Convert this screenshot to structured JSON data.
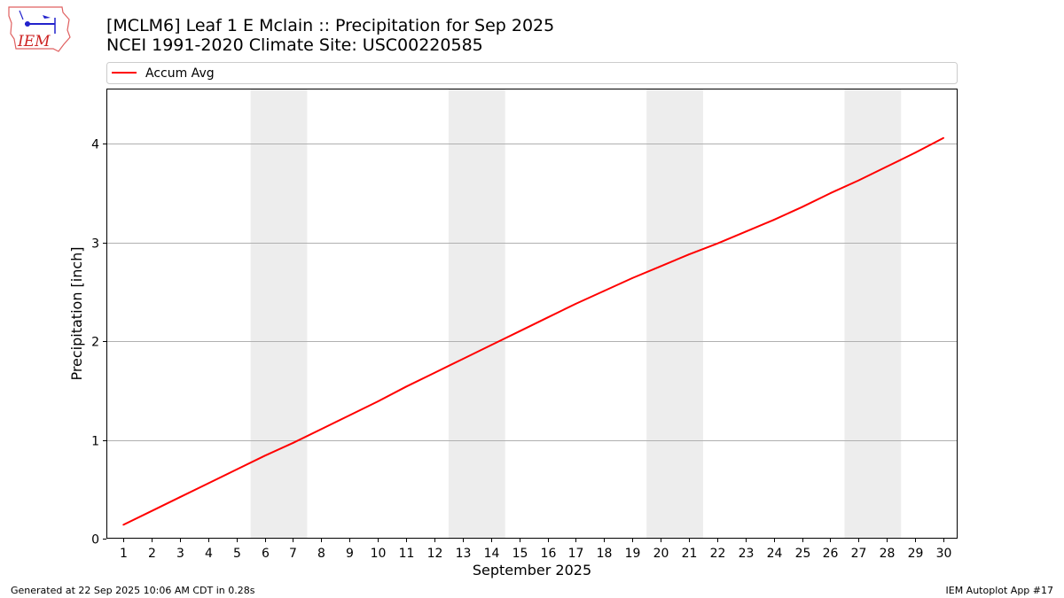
{
  "header": {
    "logo_text": "IEM",
    "title_line1": "[MCLM6] Leaf 1 E Mclain :: Precipitation for Sep 2025",
    "title_line2": "NCEI 1991-2020 Climate Site: USC00220585"
  },
  "footer": {
    "left": "Generated at 22 Sep 2025 10:06 AM CDT in 0.28s",
    "right": "IEM Autoplot App #17"
  },
  "chart_data": {
    "type": "line",
    "title": "[MCLM6] Leaf 1 E Mclain :: Precipitation for Sep 2025",
    "subtitle": "NCEI 1991-2020 Climate Site: USC00220585",
    "xlabel": "September 2025",
    "ylabel": "Precipitation [inch]",
    "xlim": [
      0.4,
      30.5
    ],
    "ylim": [
      0,
      4.56
    ],
    "yticks": [
      0,
      1,
      2,
      3,
      4
    ],
    "x": [
      1,
      2,
      3,
      4,
      5,
      6,
      7,
      8,
      9,
      10,
      11,
      12,
      13,
      14,
      15,
      16,
      17,
      18,
      19,
      20,
      21,
      22,
      23,
      24,
      25,
      26,
      27,
      28,
      29,
      30
    ],
    "series": [
      {
        "name": "Accum Avg",
        "color": "#ff0000",
        "values": [
          0.14,
          0.28,
          0.42,
          0.56,
          0.7,
          0.84,
          0.97,
          1.11,
          1.25,
          1.39,
          1.54,
          1.68,
          1.82,
          1.96,
          2.1,
          2.24,
          2.38,
          2.51,
          2.64,
          2.76,
          2.88,
          2.99,
          3.11,
          3.23,
          3.36,
          3.5,
          3.63,
          3.77,
          3.91,
          4.06
        ]
      }
    ],
    "weekend_shading": [
      [
        6,
        7
      ],
      [
        13,
        14
      ],
      [
        20,
        21
      ],
      [
        27,
        28
      ]
    ],
    "shading_color": "#ededed",
    "grid": "horizontal",
    "legend": "top-left"
  }
}
